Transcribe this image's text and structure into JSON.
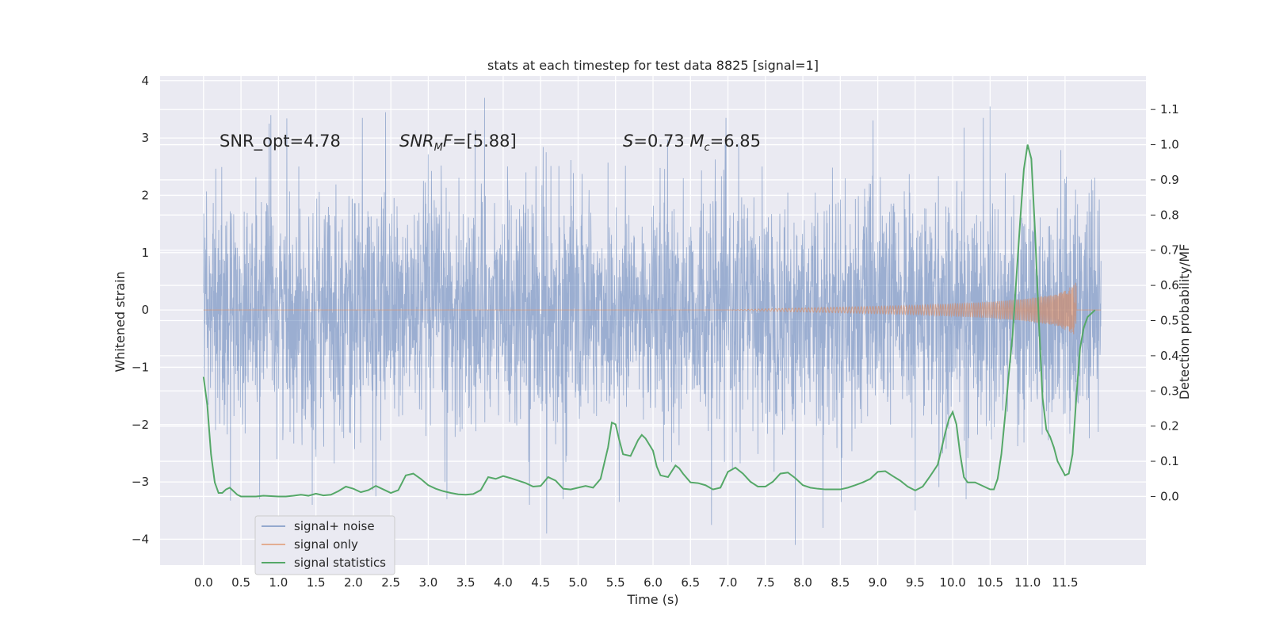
{
  "chart_data": {
    "type": "line",
    "title": "stats at each timestep for test data 8825 [signal=1]",
    "xlabel": "Time (s)",
    "ylabel_left": "Whitened strain",
    "ylabel_right": "Detection probability/MF",
    "xlim": [
      -0.58,
      12.58
    ],
    "ylim_left": [
      -4.45,
      4.08
    ],
    "ylim_right": [
      -0.195,
      1.195
    ],
    "x_ticks": [
      0.0,
      0.5,
      1.0,
      1.5,
      2.0,
      2.5,
      3.0,
      3.5,
      4.0,
      4.5,
      5.0,
      5.5,
      6.0,
      6.5,
      7.0,
      7.5,
      8.0,
      8.5,
      9.0,
      9.5,
      10.0,
      10.5,
      11.0,
      11.5
    ],
    "x_tick_labels": [
      "0.0",
      "0.5",
      "1.0",
      "1.5",
      "2.0",
      "2.5",
      "3.0",
      "3.5",
      "4.0",
      "4.5",
      "5.0",
      "5.5",
      "6.0",
      "6.5",
      "7.0",
      "7.5",
      "8.0",
      "8.5",
      "9.0",
      "9.5",
      "10.0",
      "10.5",
      "11.0",
      "11.5"
    ],
    "y_left_ticks": [
      -4,
      -3,
      -2,
      -1,
      0,
      1,
      2,
      3,
      4
    ],
    "y_left_tick_labels": [
      "−4",
      "−3",
      "−2",
      "−1",
      "0",
      "1",
      "2",
      "3",
      "4"
    ],
    "y_right_ticks": [
      0.0,
      0.1,
      0.2,
      0.3,
      0.4,
      0.5,
      0.6,
      0.7,
      0.8,
      0.9,
      1.0,
      1.1
    ],
    "y_right_tick_labels": [
      "0.0",
      "0.1",
      "0.2",
      "0.3",
      "0.4",
      "0.5",
      "0.6",
      "0.7",
      "0.8",
      "0.9",
      "1.0",
      "1.1"
    ],
    "grid": true,
    "legend_position": "lower-left",
    "annotations": [
      {
        "id": "snr-opt",
        "text": "SNR_opt=4.78",
        "x": 0.2,
        "y": 2.95
      },
      {
        "id": "snr-mf",
        "text": "SNR_MF=[5.88]",
        "x": 2.6,
        "y": 2.95
      },
      {
        "id": "spin-mc",
        "text": "S=0.73   Mc=6.85",
        "x": 5.6,
        "y": 2.95
      }
    ],
    "series": [
      {
        "name": "signal+ noise",
        "axis": "left",
        "color": "#4c72b0",
        "kind": "dense-noise",
        "x_range": [
          0.0,
          11.98
        ],
        "envelope_sigma": 1.0,
        "peaks": [
          {
            "x": 0.75,
            "y": -3.3
          },
          {
            "x": 0.9,
            "y": 3.4
          },
          {
            "x": 1.45,
            "y": -3.4
          },
          {
            "x": 2.43,
            "y": 3.45
          },
          {
            "x": 2.3,
            "y": -3.25
          },
          {
            "x": 3.25,
            "y": -3.3
          },
          {
            "x": 3.75,
            "y": 3.7
          },
          {
            "x": 4.35,
            "y": -3.4
          },
          {
            "x": 4.58,
            "y": -3.9
          },
          {
            "x": 4.8,
            "y": -3.3
          },
          {
            "x": 5.55,
            "y": -3.35
          },
          {
            "x": 6.78,
            "y": -3.75
          },
          {
            "x": 7.9,
            "y": -4.1
          },
          {
            "x": 8.27,
            "y": -3.8
          },
          {
            "x": 9.5,
            "y": -3.5
          },
          {
            "x": 10.18,
            "y": -3.3
          },
          {
            "x": 10.5,
            "y": 3.55
          }
        ]
      },
      {
        "name": "signal only",
        "axis": "left",
        "color": "#dd8452",
        "kind": "chirp",
        "merger_time": 11.65,
        "envelope": [
          {
            "x": 7.5,
            "y": 0.02
          },
          {
            "x": 8.5,
            "y": 0.05
          },
          {
            "x": 9.5,
            "y": 0.08
          },
          {
            "x": 10.5,
            "y": 0.14
          },
          {
            "x": 11.0,
            "y": 0.2
          },
          {
            "x": 11.4,
            "y": 0.28
          },
          {
            "x": 11.6,
            "y": 0.42
          },
          {
            "x": 11.65,
            "y": 0.52
          }
        ]
      },
      {
        "name": "signal statistics",
        "axis": "right",
        "color": "#55a868",
        "kind": "line",
        "points": [
          [
            0.0,
            0.34
          ],
          [
            0.05,
            0.26
          ],
          [
            0.1,
            0.12
          ],
          [
            0.15,
            0.04
          ],
          [
            0.2,
            0.01
          ],
          [
            0.25,
            0.01
          ],
          [
            0.3,
            0.02
          ],
          [
            0.35,
            0.025
          ],
          [
            0.4,
            0.015
          ],
          [
            0.45,
            0.005
          ],
          [
            0.5,
            0.0
          ],
          [
            0.6,
            0.0
          ],
          [
            0.7,
            0.0
          ],
          [
            0.8,
            0.002
          ],
          [
            0.9,
            0.001
          ],
          [
            1.0,
            0.0
          ],
          [
            1.1,
            0.0
          ],
          [
            1.2,
            0.002
          ],
          [
            1.3,
            0.005
          ],
          [
            1.4,
            0.002
          ],
          [
            1.5,
            0.008
          ],
          [
            1.6,
            0.003
          ],
          [
            1.7,
            0.005
          ],
          [
            1.8,
            0.015
          ],
          [
            1.9,
            0.028
          ],
          [
            2.0,
            0.022
          ],
          [
            2.1,
            0.012
          ],
          [
            2.2,
            0.018
          ],
          [
            2.3,
            0.03
          ],
          [
            2.4,
            0.02
          ],
          [
            2.5,
            0.01
          ],
          [
            2.6,
            0.018
          ],
          [
            2.7,
            0.06
          ],
          [
            2.8,
            0.065
          ],
          [
            2.9,
            0.05
          ],
          [
            3.0,
            0.032
          ],
          [
            3.1,
            0.022
          ],
          [
            3.2,
            0.015
          ],
          [
            3.3,
            0.01
          ],
          [
            3.4,
            0.006
          ],
          [
            3.5,
            0.005
          ],
          [
            3.6,
            0.007
          ],
          [
            3.7,
            0.018
          ],
          [
            3.8,
            0.055
          ],
          [
            3.9,
            0.05
          ],
          [
            4.0,
            0.058
          ],
          [
            4.1,
            0.052
          ],
          [
            4.2,
            0.045
          ],
          [
            4.3,
            0.038
          ],
          [
            4.4,
            0.028
          ],
          [
            4.5,
            0.03
          ],
          [
            4.6,
            0.055
          ],
          [
            4.7,
            0.045
          ],
          [
            4.8,
            0.022
          ],
          [
            4.9,
            0.02
          ],
          [
            5.0,
            0.025
          ],
          [
            5.1,
            0.03
          ],
          [
            5.2,
            0.025
          ],
          [
            5.3,
            0.05
          ],
          [
            5.4,
            0.14
          ],
          [
            5.45,
            0.21
          ],
          [
            5.5,
            0.205
          ],
          [
            5.55,
            0.16
          ],
          [
            5.6,
            0.12
          ],
          [
            5.7,
            0.115
          ],
          [
            5.8,
            0.16
          ],
          [
            5.85,
            0.175
          ],
          [
            5.9,
            0.165
          ],
          [
            6.0,
            0.13
          ],
          [
            6.05,
            0.085
          ],
          [
            6.1,
            0.06
          ],
          [
            6.2,
            0.055
          ],
          [
            6.3,
            0.088
          ],
          [
            6.35,
            0.08
          ],
          [
            6.4,
            0.065
          ],
          [
            6.5,
            0.04
          ],
          [
            6.6,
            0.038
          ],
          [
            6.7,
            0.032
          ],
          [
            6.8,
            0.02
          ],
          [
            6.9,
            0.025
          ],
          [
            7.0,
            0.07
          ],
          [
            7.1,
            0.082
          ],
          [
            7.2,
            0.065
          ],
          [
            7.3,
            0.042
          ],
          [
            7.4,
            0.028
          ],
          [
            7.5,
            0.028
          ],
          [
            7.6,
            0.042
          ],
          [
            7.7,
            0.065
          ],
          [
            7.8,
            0.068
          ],
          [
            7.9,
            0.052
          ],
          [
            8.0,
            0.032
          ],
          [
            8.1,
            0.025
          ],
          [
            8.2,
            0.022
          ],
          [
            8.3,
            0.02
          ],
          [
            8.4,
            0.02
          ],
          [
            8.5,
            0.02
          ],
          [
            8.6,
            0.025
          ],
          [
            8.7,
            0.032
          ],
          [
            8.8,
            0.04
          ],
          [
            8.9,
            0.05
          ],
          [
            9.0,
            0.07
          ],
          [
            9.1,
            0.072
          ],
          [
            9.2,
            0.058
          ],
          [
            9.3,
            0.045
          ],
          [
            9.4,
            0.028
          ],
          [
            9.5,
            0.017
          ],
          [
            9.6,
            0.028
          ],
          [
            9.7,
            0.058
          ],
          [
            9.8,
            0.09
          ],
          [
            9.9,
            0.18
          ],
          [
            9.95,
            0.22
          ],
          [
            10.0,
            0.24
          ],
          [
            10.05,
            0.205
          ],
          [
            10.1,
            0.12
          ],
          [
            10.15,
            0.055
          ],
          [
            10.2,
            0.04
          ],
          [
            10.3,
            0.04
          ],
          [
            10.4,
            0.03
          ],
          [
            10.5,
            0.02
          ],
          [
            10.55,
            0.02
          ],
          [
            10.6,
            0.05
          ],
          [
            10.65,
            0.12
          ],
          [
            10.7,
            0.23
          ],
          [
            10.75,
            0.35
          ],
          [
            10.8,
            0.46
          ],
          [
            10.85,
            0.62
          ],
          [
            10.9,
            0.78
          ],
          [
            10.95,
            0.93
          ],
          [
            11.0,
            1.0
          ],
          [
            11.05,
            0.96
          ],
          [
            11.1,
            0.75
          ],
          [
            11.15,
            0.5
          ],
          [
            11.2,
            0.28
          ],
          [
            11.25,
            0.19
          ],
          [
            11.3,
            0.17
          ],
          [
            11.35,
            0.14
          ],
          [
            11.4,
            0.1
          ],
          [
            11.45,
            0.08
          ],
          [
            11.5,
            0.06
          ],
          [
            11.55,
            0.065
          ],
          [
            11.6,
            0.12
          ],
          [
            11.65,
            0.28
          ],
          [
            11.7,
            0.42
          ],
          [
            11.75,
            0.48
          ],
          [
            11.8,
            0.51
          ],
          [
            11.85,
            0.52
          ],
          [
            11.9,
            0.53
          ]
        ]
      }
    ]
  }
}
